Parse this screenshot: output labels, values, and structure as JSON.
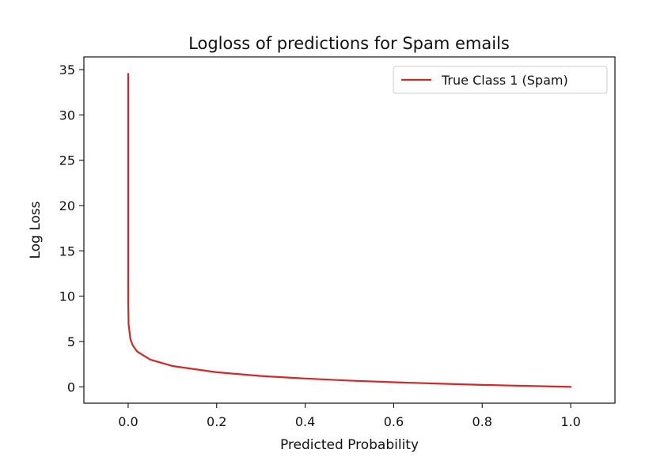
{
  "chart_data": {
    "type": "line",
    "title": "Logloss of predictions for Spam emails",
    "xlabel": "Predicted Probability",
    "ylabel": "Log Loss",
    "xlim": [
      -0.1,
      1.1
    ],
    "ylim": [
      -1.8,
      36.4
    ],
    "x_ticks": [
      0.0,
      0.2,
      0.4,
      0.6,
      0.8,
      1.0
    ],
    "x_tick_labels": [
      "0.0",
      "0.2",
      "0.4",
      "0.6",
      "0.8",
      "1.0"
    ],
    "y_ticks": [
      0,
      5,
      10,
      15,
      20,
      25,
      30,
      35
    ],
    "y_tick_labels": [
      "0",
      "5",
      "10",
      "15",
      "20",
      "25",
      "30",
      "35"
    ],
    "grid": false,
    "legend_position": "top-right",
    "series": [
      {
        "name": "True Class 1 (Spam)",
        "color": "#d62728",
        "function": "-ln(p)",
        "x": [
          1e-15,
          1e-12,
          1e-09,
          1e-06,
          1e-05,
          0.0001,
          0.001,
          0.005,
          0.01,
          0.02,
          0.05,
          0.1,
          0.2,
          0.3,
          0.4,
          0.5,
          0.6,
          0.7,
          0.8,
          0.9,
          1.0
        ],
        "values": [
          34.54,
          27.63,
          20.72,
          13.82,
          11.51,
          9.21,
          6.91,
          5.3,
          4.61,
          3.91,
          3.0,
          2.3,
          1.61,
          1.2,
          0.92,
          0.69,
          0.51,
          0.36,
          0.22,
          0.11,
          0.0
        ]
      }
    ]
  }
}
